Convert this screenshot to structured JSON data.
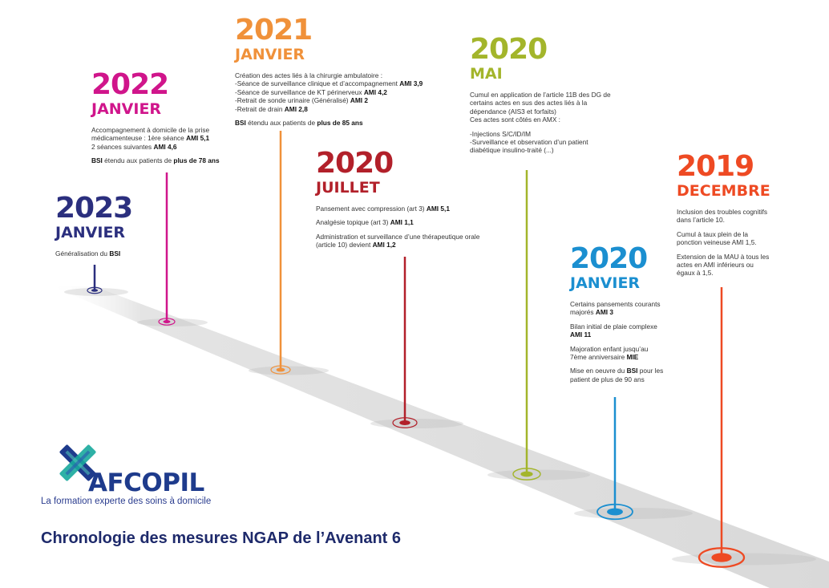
{
  "title": "Chronologie des mesures NGAP de l’Avenant 6",
  "logo": {
    "name": "AFCOPIL",
    "tagline": "La formation experte des soins à domicile"
  },
  "colors": {
    "navy": "#2b2f7e",
    "magenta": "#d0158b",
    "orange": "#f0913a",
    "darkred": "#b2202a",
    "olive": "#a3b52b",
    "blue": "#1b8fd0",
    "red": "#ee4a23",
    "logo_blue": "#1e3b8c",
    "logo_teal": "#18a89c",
    "road": "#e4e4e4"
  },
  "events": [
    {
      "id": "2023-janvier",
      "year": "2023",
      "month": "JANVIER",
      "color": "#2b2f7e",
      "paragraphs": [
        [
          "Généralisation du ",
          {
            "b": "BSI"
          }
        ]
      ]
    },
    {
      "id": "2022-janvier",
      "year": "2022",
      "month": "JANVIER",
      "color": "#d0158b",
      "paragraphs": [
        [
          "Accompagnement à domicile de la prise médicamenteuse : 1ère séance ",
          {
            "b": "AMI 5,1"
          },
          {
            "br": 1
          },
          "2 séances suivantes ",
          {
            "b": "AMI 4,6"
          }
        ],
        [
          {
            "b": "BSI"
          },
          "  étendu aux patients de ",
          {
            "b": "plus de 78 ans"
          }
        ]
      ]
    },
    {
      "id": "2021-janvier",
      "year": "2021",
      "month": "JANVIER",
      "color": "#f0913a",
      "paragraphs": [
        [
          "Création des actes liés à la chirurgie ambulatoire :",
          {
            "br": 1
          },
          "-Séance de surveillance clinique et d’accompagnement ",
          {
            "b": "AMI 3,9"
          },
          {
            "br": 1
          },
          "-Séance de surveillance de KT périnerveux ",
          {
            "b": "AMI 4,2"
          },
          {
            "br": 1
          },
          "-Retrait de sonde urinaire (Généralisé) ",
          {
            "b": "AMI 2"
          },
          {
            "br": 1
          },
          "-Retrait de drain ",
          {
            "b": "AMI 2,8"
          }
        ],
        [
          {
            "b": "BSI"
          },
          "  étendu aux patients de ",
          {
            "b": "plus de 85 ans"
          }
        ]
      ]
    },
    {
      "id": "2020-juillet",
      "year": "2020",
      "month": "JUILLET",
      "color": "#b2202a",
      "paragraphs": [
        [
          "Pansement avec compression (art 3) ",
          {
            "b": "AMI 5,1"
          }
        ],
        [
          "Analgésie topique (art 3) ",
          {
            "b": "AMI 1,1"
          }
        ],
        [
          "Administration et surveillance d’une thérapeutique orale (article 10) devient ",
          {
            "b": "AMI 1,2"
          }
        ]
      ]
    },
    {
      "id": "2020-mai",
      "year": "2020",
      "month": "MAI",
      "color": "#a3b52b",
      "paragraphs": [
        [
          "Cumul en application de l’article 11B des DG de certains actes en sus des actes liés à la dépendance (AIS3 et forfaits)",
          {
            "br": 1
          },
          "Ces actes sont côtés en AMX :"
        ],
        [
          "-Injections S/C/ID/IM",
          {
            "br": 1
          },
          "-Surveillance et observation d’un patient diabétique insulino-traité (...)"
        ]
      ]
    },
    {
      "id": "2020-janvier",
      "year": "2020",
      "month": "JANVIER",
      "color": "#1b8fd0",
      "paragraphs": [
        [
          "Certains pansements courants majorés ",
          {
            "b": "AMI 3"
          }
        ],
        [
          "Bilan initial de plaie complexe ",
          {
            "b": "AMI 11"
          }
        ],
        [
          "Majoration enfant jusqu’au 7ème anniversaire ",
          {
            "b": "MIE"
          }
        ],
        [
          "Mise en oeuvre du ",
          {
            "b": "BSI"
          },
          " pour les patient de plus de 90 ans"
        ]
      ]
    },
    {
      "id": "2019-decembre",
      "year": "2019",
      "month": "DECEMBRE",
      "color": "#ee4a23",
      "paragraphs": [
        [
          "Inclusion des troubles cognitifs dans l’article 10."
        ],
        [
          "Cumul à taux plein de la ponction veineuse AMI 1,5."
        ],
        [
          "Extension de la MAU à tous les actes en AMI inférieurs ou égaux à 1,5."
        ]
      ]
    }
  ]
}
